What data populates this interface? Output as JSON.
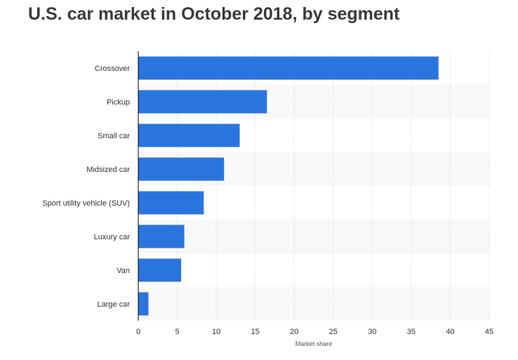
{
  "title": "U.S. car market in October 2018, by segment",
  "colors": {
    "bar": "#2a75dd",
    "band": "#f8f8f8",
    "grid": "#cfcfcf",
    "axis": "#000000",
    "text": "#333333",
    "title": "#3a3a3a"
  },
  "chart_data": {
    "type": "bar",
    "orientation": "horizontal",
    "title": "U.S. car market in October 2018, by segment",
    "xlabel": "Market share",
    "ylabel": "",
    "categories": [
      "Crossover",
      "Pickup",
      "Small car",
      "Midsized car",
      "Sport utility vehicle (SUV)",
      "Luxury car",
      "Van",
      "Large car"
    ],
    "values": [
      38.5,
      16.5,
      13,
      11,
      8.4,
      5.9,
      5.5,
      1.3
    ],
    "xlim": [
      0,
      45
    ],
    "xticks": [
      0,
      5,
      10,
      15,
      20,
      25,
      30,
      35,
      40,
      45
    ],
    "grid": true,
    "legend": "none"
  }
}
